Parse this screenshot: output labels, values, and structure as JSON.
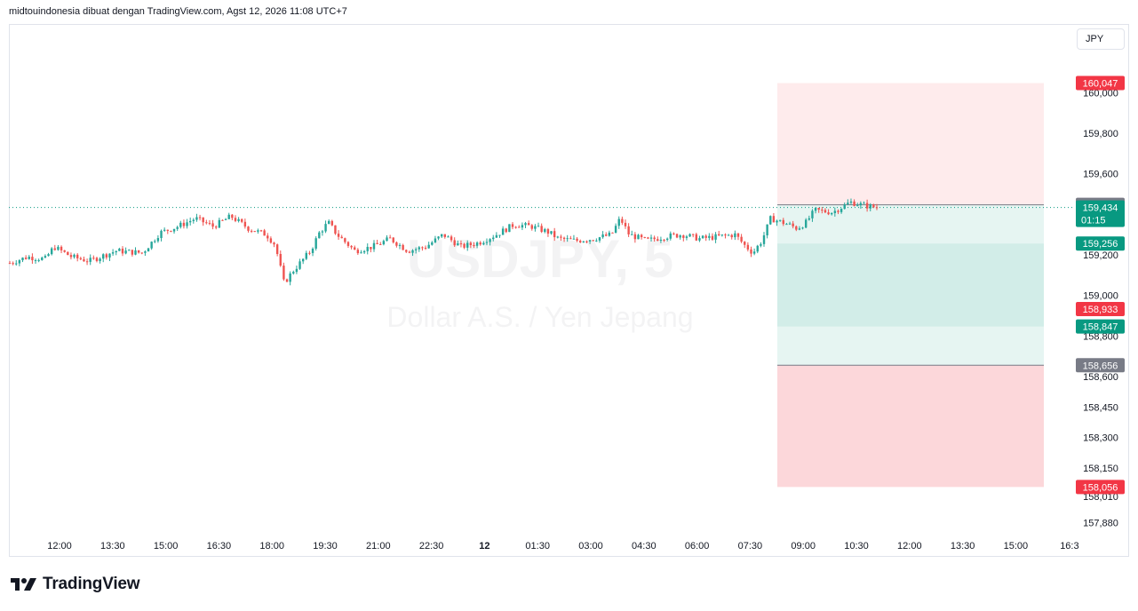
{
  "header": {
    "attribution": "midtouindonesia dibuat dengan TradingView.com, Agst 12, 2026 11:08 UTC+7"
  },
  "currency_button": {
    "label": "JPY"
  },
  "watermark": {
    "symbol": "USDJPY, 5",
    "description": "Dollar A.S. / Yen Jepang"
  },
  "footer": {
    "brand": "TradingView"
  },
  "colors": {
    "up": "#26a69a",
    "down": "#ef5350",
    "stop_zone": "#f23645",
    "target_zone": "#089981",
    "neutral_tag": "#787b86"
  },
  "chart_data": {
    "type": "candlestick",
    "symbol": "USDJPY",
    "timeframe": "5",
    "ylim": [
      157.83,
      160.15
    ],
    "x_ticks": [
      "12:00",
      "13:30",
      "15:00",
      "16:30",
      "18:00",
      "19:30",
      "21:00",
      "22:30",
      "12",
      "01:30",
      "03:00",
      "04:30",
      "06:00",
      "07:30",
      "09:00",
      "10:30",
      "12:00",
      "13:30",
      "15:00",
      "16:3"
    ],
    "y_ticks": [
      {
        "label": "160,000",
        "value": 160.0
      },
      {
        "label": "159,800",
        "value": 159.8
      },
      {
        "label": "159,600",
        "value": 159.6
      },
      {
        "label": "159,200",
        "value": 159.2
      },
      {
        "label": "159,000",
        "value": 159.0
      },
      {
        "label": "158,800",
        "value": 158.8
      },
      {
        "label": "158,600",
        "value": 158.6
      },
      {
        "label": "158,450",
        "value": 158.45
      },
      {
        "label": "158,300",
        "value": 158.3
      },
      {
        "label": "158,150",
        "value": 158.15
      },
      {
        "label": "158,010",
        "value": 158.01
      },
      {
        "label": "157,880",
        "value": 157.88
      }
    ],
    "price_tags": [
      {
        "label": "160,047",
        "value": 160.047,
        "kind": "stop"
      },
      {
        "label": "159,447",
        "value": 159.447,
        "kind": "neutral"
      },
      {
        "label": "159,434",
        "value": 159.434,
        "kind": "last",
        "countdown": "01:15"
      },
      {
        "label": "159,256",
        "value": 159.256,
        "kind": "target"
      },
      {
        "label": "158,933",
        "value": 158.933,
        "kind": "stop"
      },
      {
        "label": "158,847",
        "value": 158.847,
        "kind": "target"
      },
      {
        "label": "158,656",
        "value": 158.656,
        "kind": "neutral"
      },
      {
        "label": "158,056",
        "value": 158.056,
        "kind": "stop"
      }
    ],
    "last_price": 159.434,
    "price_path": [
      {
        "t": 0,
        "v": 159.16
      },
      {
        "t": 2,
        "v": 159.19
      },
      {
        "t": 4,
        "v": 159.18
      },
      {
        "t": 5,
        "v": 159.24
      },
      {
        "t": 7,
        "v": 159.19
      },
      {
        "t": 9,
        "v": 159.17
      },
      {
        "t": 12,
        "v": 159.22
      },
      {
        "t": 15,
        "v": 159.21
      },
      {
        "t": 17,
        "v": 159.31
      },
      {
        "t": 19,
        "v": 159.34
      },
      {
        "t": 21,
        "v": 159.38
      },
      {
        "t": 23,
        "v": 159.34
      },
      {
        "t": 25,
        "v": 159.39
      },
      {
        "t": 27,
        "v": 159.33
      },
      {
        "t": 29,
        "v": 159.3
      },
      {
        "t": 30,
        "v": 159.25
      },
      {
        "t": 31,
        "v": 159.06
      },
      {
        "t": 32,
        "v": 159.12
      },
      {
        "t": 34,
        "v": 159.22
      },
      {
        "t": 35,
        "v": 159.31
      },
      {
        "t": 36,
        "v": 159.36
      },
      {
        "t": 37,
        "v": 159.3
      },
      {
        "t": 39,
        "v": 159.22
      },
      {
        "t": 41,
        "v": 159.24
      },
      {
        "t": 43,
        "v": 159.28
      },
      {
        "t": 45,
        "v": 159.22
      },
      {
        "t": 47,
        "v": 159.24
      },
      {
        "t": 49,
        "v": 159.3
      },
      {
        "t": 51,
        "v": 159.24
      },
      {
        "t": 53,
        "v": 159.26
      },
      {
        "t": 55,
        "v": 159.3
      },
      {
        "t": 57,
        "v": 159.35
      },
      {
        "t": 59,
        "v": 159.34
      },
      {
        "t": 61,
        "v": 159.31
      },
      {
        "t": 62,
        "v": 159.28
      },
      {
        "t": 64,
        "v": 159.27
      },
      {
        "t": 66,
        "v": 159.28
      },
      {
        "t": 68,
        "v": 159.3
      },
      {
        "t": 69,
        "v": 159.38
      },
      {
        "t": 70,
        "v": 159.3
      },
      {
        "t": 72,
        "v": 159.27
      },
      {
        "t": 74,
        "v": 159.29
      },
      {
        "t": 76,
        "v": 159.3
      },
      {
        "t": 78,
        "v": 159.28
      },
      {
        "t": 80,
        "v": 159.29
      },
      {
        "t": 82,
        "v": 159.3
      },
      {
        "t": 83,
        "v": 159.25
      },
      {
        "t": 84,
        "v": 159.21
      },
      {
        "t": 85,
        "v": 159.27
      },
      {
        "t": 86,
        "v": 159.38
      },
      {
        "t": 88,
        "v": 159.35
      },
      {
        "t": 89,
        "v": 159.33
      },
      {
        "t": 90,
        "v": 159.36
      },
      {
        "t": 91,
        "v": 159.42
      },
      {
        "t": 93,
        "v": 159.41
      },
      {
        "t": 95,
        "v": 159.46
      },
      {
        "t": 97,
        "v": 159.44
      },
      {
        "t": 98,
        "v": 159.434
      }
    ],
    "position_tool": {
      "stop_zone_upper": [
        159.447,
        160.047
      ],
      "target_zone_a": [
        159.256,
        159.447
      ],
      "target_zone_b": [
        158.847,
        159.256
      ],
      "target_zone_c": [
        158.656,
        158.847
      ],
      "stop_zone_lower": [
        158.056,
        158.656
      ]
    }
  }
}
